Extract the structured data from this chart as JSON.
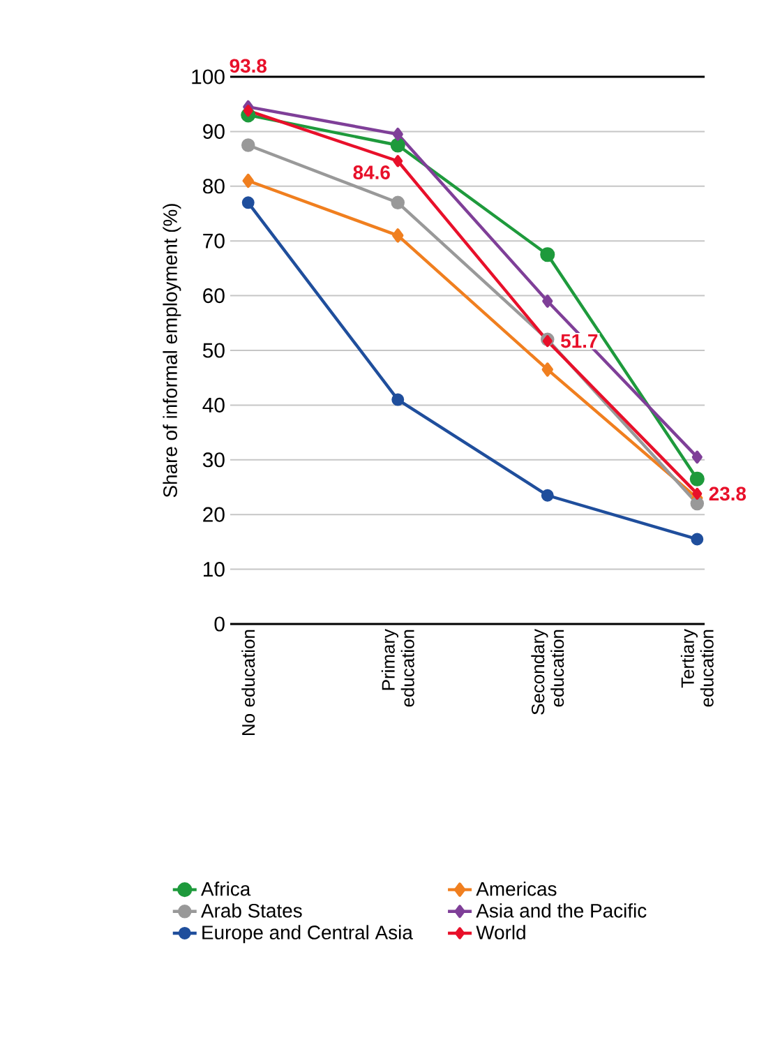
{
  "chart_data": {
    "type": "line",
    "ylabel": "Share of informal employment (%)",
    "categories": [
      "No education",
      "Primary education",
      "Secondary education",
      "Tertiary education"
    ],
    "series": [
      {
        "name": "Africa",
        "color": "#1e9a3c",
        "marker": "circle",
        "values": [
          93,
          87.5,
          67.5,
          26.5
        ]
      },
      {
        "name": "Americas",
        "color": "#f07f1f",
        "marker": "diamond",
        "values": [
          81,
          71,
          46.5,
          23
        ]
      },
      {
        "name": "Arab States",
        "color": "#999999",
        "marker": "circle",
        "values": [
          87.5,
          77,
          52,
          22
        ]
      },
      {
        "name": "Asia and the Pacific",
        "color": "#7f3f98",
        "marker": "diamond",
        "values": [
          94.5,
          89.5,
          59,
          30.5
        ]
      },
      {
        "name": "Europe and Central Asia",
        "color": "#1f4e9c",
        "marker": "circle",
        "values": [
          77,
          41,
          23.5,
          15.5
        ]
      },
      {
        "name": "World",
        "color": "#e8102a",
        "marker": "diamond",
        "values": [
          93.8,
          84.6,
          51.7,
          23.8
        ],
        "value_labels": [
          "93.8",
          "84.6",
          "51.7",
          "23.8"
        ]
      }
    ],
    "ylim": [
      0,
      100
    ],
    "yticks": [
      0,
      10,
      20,
      30,
      40,
      50,
      60,
      70,
      80,
      90,
      100
    ],
    "grid": "y",
    "legend": "bottom"
  }
}
